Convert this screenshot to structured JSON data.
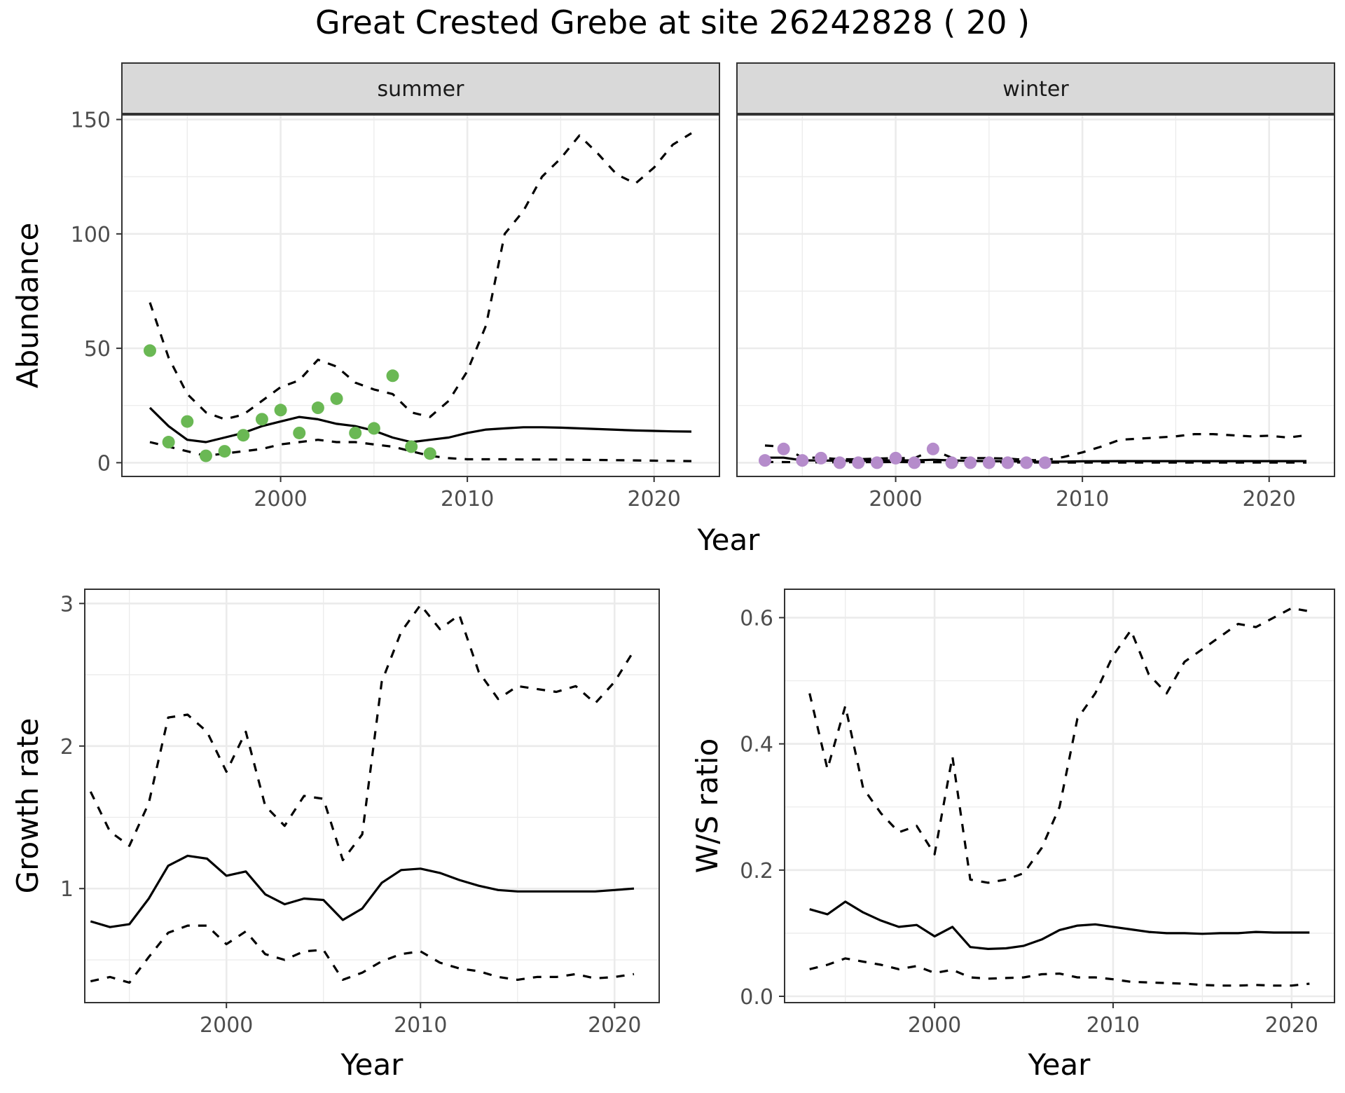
{
  "title": "Great Crested Grebe at site 26242828 ( 20 )",
  "colors": {
    "summer_points": "#6ab854",
    "winter_points": "#b58ccb",
    "line": "#000000",
    "grid": "#ebebeb",
    "strip_fill": "#d9d9d9",
    "panel_border": "#333333"
  },
  "chart_data": [
    {
      "type": "line",
      "panel": "summer",
      "strip": "summer",
      "xlabel": "Year",
      "ylabel": "Abundance",
      "xlim": [
        1991.5,
        2023.5
      ],
      "ylim": [
        -6,
        152
      ],
      "xticks": [
        2000,
        2010,
        2020
      ],
      "yticks": [
        0,
        50,
        100,
        150
      ],
      "grid": true,
      "points": {
        "x": [
          1993,
          1994,
          1995,
          1996,
          1997,
          1998,
          1999,
          2000,
          2001,
          2002,
          2003,
          2004,
          2005,
          2006,
          2007,
          2008
        ],
        "y": [
          49,
          9,
          18,
          3,
          5,
          12,
          19,
          23,
          13,
          24,
          28,
          13,
          15,
          38,
          7,
          4
        ]
      },
      "series": [
        {
          "style": "solid",
          "x": [
            1993,
            1994,
            1995,
            1996,
            1997,
            1998,
            1999,
            2000,
            2001,
            2002,
            2003,
            2004,
            2005,
            2006,
            2007,
            2008,
            2009,
            2010,
            2011,
            2012,
            2013,
            2014,
            2015,
            2016,
            2017,
            2018,
            2019,
            2020,
            2021,
            2022
          ],
          "y": [
            24,
            16,
            10,
            9,
            11,
            13,
            16,
            18,
            20,
            19,
            17,
            16,
            14,
            11,
            9,
            10,
            11,
            13,
            14.5,
            15,
            15.5,
            15.5,
            15.3,
            15,
            14.7,
            14.4,
            14.1,
            13.9,
            13.7,
            13.6
          ]
        },
        {
          "style": "dashed",
          "x": [
            1993,
            1994,
            1995,
            1996,
            1997,
            1998,
            1999,
            2000,
            2001,
            2002,
            2003,
            2004,
            2005,
            2006,
            2007,
            2008,
            2009,
            2010,
            2011,
            2012,
            2013,
            2014,
            2015,
            2016,
            2017,
            2018,
            2019,
            2020,
            2021,
            2022
          ],
          "y": [
            70,
            46,
            30,
            22,
            19,
            21,
            27,
            33,
            36,
            45,
            42,
            35,
            32,
            30,
            22,
            20,
            27,
            40,
            60,
            100,
            110,
            125,
            133,
            143,
            135,
            126,
            122,
            129,
            139,
            144
          ]
        },
        {
          "style": "dashed",
          "x": [
            1993,
            1994,
            1995,
            1996,
            1997,
            1998,
            1999,
            2000,
            2001,
            2002,
            2003,
            2004,
            2005,
            2006,
            2007,
            2008,
            2009,
            2010,
            2011,
            2012,
            2013,
            2014,
            2015,
            2016,
            2017,
            2018,
            2019,
            2020,
            2021,
            2022
          ],
          "y": [
            9,
            7,
            5,
            3,
            4,
            5,
            6,
            8,
            9,
            10,
            9,
            9,
            8,
            7,
            5,
            3,
            2,
            1.5,
            1.5,
            1.5,
            1.4,
            1.4,
            1.4,
            1.3,
            1.2,
            1.1,
            1,
            0.9,
            0.8,
            0.7
          ]
        }
      ]
    },
    {
      "type": "line",
      "panel": "winter",
      "strip": "winter",
      "xlabel": "",
      "ylabel": "",
      "xlim": [
        1991.5,
        2023.5
      ],
      "ylim": [
        -6,
        152
      ],
      "xticks": [
        2000,
        2010,
        2020
      ],
      "yticks": [],
      "grid": true,
      "points": {
        "x": [
          1993,
          1994,
          1995,
          1996,
          1997,
          1998,
          1999,
          2000,
          2001,
          2002,
          2003,
          2004,
          2005,
          2006,
          2007,
          2008
        ],
        "y": [
          1,
          6,
          1,
          2,
          0,
          0,
          0,
          2,
          0,
          6,
          0,
          0,
          0,
          0,
          0,
          0
        ]
      },
      "series": [
        {
          "style": "solid",
          "x": [
            1993,
            1994,
            1995,
            1996,
            1997,
            1998,
            1999,
            2000,
            2001,
            2002,
            2003,
            2004,
            2005,
            2006,
            2007,
            2008,
            2009,
            2010,
            2012,
            2014,
            2016,
            2018,
            2020,
            2022
          ],
          "y": [
            2.2,
            2.2,
            1,
            1,
            0.8,
            0.8,
            0.9,
            1,
            1,
            1.3,
            1,
            0.8,
            0.7,
            0.6,
            0.5,
            0.5,
            0.5,
            0.6,
            0.7,
            0.7,
            0.7,
            0.7,
            0.7,
            0.7
          ]
        },
        {
          "style": "dashed",
          "x": [
            1993,
            1994,
            1995,
            1996,
            1997,
            1998,
            1999,
            2000,
            2001,
            2002,
            2003,
            2004,
            2005,
            2006,
            2007,
            2008,
            2009,
            2010,
            2011,
            2012,
            2013,
            2014,
            2015,
            2016,
            2017,
            2018,
            2019,
            2020,
            2021,
            2022
          ],
          "y": [
            7.5,
            7,
            2.2,
            2.2,
            1.5,
            1.5,
            1.8,
            2,
            2,
            5.5,
            2.2,
            2,
            2,
            1.8,
            1.2,
            1,
            2.5,
            4.5,
            7,
            10,
            10.5,
            11,
            11.5,
            12.5,
            12.5,
            12,
            11.5,
            11.8,
            11,
            12
          ]
        },
        {
          "style": "dashed",
          "x": [
            1993,
            1996,
            2000,
            2004,
            2008,
            2012,
            2016,
            2020,
            2022
          ],
          "y": [
            0.3,
            0.2,
            0.3,
            0.2,
            0.1,
            0.1,
            0.1,
            0.1,
            0.1
          ]
        }
      ]
    },
    {
      "type": "line",
      "panel": "growth",
      "xlabel": "Year",
      "ylabel": "Growth rate",
      "xlim": [
        1992.7,
        2022.3
      ],
      "ylim": [
        0.2,
        3.1
      ],
      "xticks": [
        2000,
        2010,
        2020
      ],
      "yticks": [
        1,
        2,
        3
      ],
      "grid": true,
      "series": [
        {
          "style": "solid",
          "x": [
            1993,
            1994,
            1995,
            1996,
            1997,
            1998,
            1999,
            2000,
            2001,
            2002,
            2003,
            2004,
            2005,
            2006,
            2007,
            2008,
            2009,
            2010,
            2011,
            2012,
            2013,
            2014,
            2015,
            2016,
            2017,
            2018,
            2019,
            2020,
            2021
          ],
          "y": [
            0.77,
            0.73,
            0.75,
            0.93,
            1.16,
            1.23,
            1.21,
            1.09,
            1.12,
            0.96,
            0.89,
            0.93,
            0.92,
            0.78,
            0.86,
            1.04,
            1.13,
            1.14,
            1.11,
            1.06,
            1.02,
            0.99,
            0.98,
            0.98,
            0.98,
            0.98,
            0.98,
            0.99,
            1.0
          ]
        },
        {
          "style": "dashed",
          "x": [
            1993,
            1994,
            1995,
            1996,
            1997,
            1998,
            1999,
            2000,
            2001,
            2002,
            2003,
            2004,
            2005,
            2006,
            2007,
            2008,
            2009,
            2010,
            2011,
            2012,
            2013,
            2014,
            2015,
            2016,
            2017,
            2018,
            2019,
            2020,
            2021
          ],
          "y": [
            1.68,
            1.4,
            1.3,
            1.6,
            2.2,
            2.22,
            2.1,
            1.82,
            2.1,
            1.58,
            1.44,
            1.65,
            1.63,
            1.2,
            1.38,
            2.45,
            2.8,
            2.99,
            2.82,
            2.92,
            2.52,
            2.33,
            2.42,
            2.4,
            2.38,
            2.42,
            2.3,
            2.45,
            2.67
          ]
        },
        {
          "style": "dashed",
          "x": [
            1993,
            1994,
            1995,
            1996,
            1997,
            1998,
            1999,
            2000,
            2001,
            2002,
            2003,
            2004,
            2005,
            2006,
            2007,
            2008,
            2009,
            2010,
            2011,
            2012,
            2013,
            2014,
            2015,
            2016,
            2017,
            2018,
            2019,
            2020,
            2021
          ],
          "y": [
            0.35,
            0.38,
            0.34,
            0.52,
            0.69,
            0.74,
            0.74,
            0.61,
            0.7,
            0.54,
            0.5,
            0.56,
            0.57,
            0.36,
            0.41,
            0.49,
            0.54,
            0.56,
            0.48,
            0.44,
            0.42,
            0.38,
            0.36,
            0.38,
            0.38,
            0.4,
            0.37,
            0.38,
            0.4
          ]
        }
      ]
    },
    {
      "type": "line",
      "panel": "ratio",
      "xlabel": "Year",
      "ylabel": "W/S ratio",
      "xlim": [
        1991.6,
        2022.4
      ],
      "ylim": [
        -0.01,
        0.645
      ],
      "xticks": [
        2000,
        2010,
        2020
      ],
      "yticks": [
        0.0,
        0.2,
        0.4,
        0.6
      ],
      "ytick_labels": [
        "0.0",
        "0.2",
        "0.4",
        "0.6"
      ],
      "grid": true,
      "series": [
        {
          "style": "solid",
          "x": [
            1993,
            1994,
            1995,
            1996,
            1997,
            1998,
            1999,
            2000,
            2001,
            2002,
            2003,
            2004,
            2005,
            2006,
            2007,
            2008,
            2009,
            2010,
            2011,
            2012,
            2013,
            2014,
            2015,
            2016,
            2017,
            2018,
            2019,
            2020,
            2021
          ],
          "y": [
            0.138,
            0.13,
            0.15,
            0.133,
            0.12,
            0.11,
            0.113,
            0.095,
            0.11,
            0.078,
            0.075,
            0.076,
            0.08,
            0.09,
            0.105,
            0.112,
            0.114,
            0.11,
            0.106,
            0.102,
            0.1,
            0.1,
            0.099,
            0.1,
            0.1,
            0.102,
            0.101,
            0.101,
            0.101
          ]
        },
        {
          "style": "dashed",
          "x": [
            1993,
            1994,
            1995,
            1996,
            1997,
            1998,
            1999,
            2000,
            2001,
            2002,
            2003,
            2004,
            2005,
            2006,
            2007,
            2008,
            2009,
            2010,
            2011,
            2012,
            2013,
            2014,
            2015,
            2016,
            2017,
            2018,
            2019,
            2020,
            2021
          ],
          "y": [
            0.48,
            0.36,
            0.46,
            0.33,
            0.29,
            0.26,
            0.27,
            0.225,
            0.38,
            0.185,
            0.18,
            0.185,
            0.195,
            0.235,
            0.3,
            0.44,
            0.48,
            0.54,
            0.58,
            0.51,
            0.48,
            0.53,
            0.55,
            0.57,
            0.59,
            0.585,
            0.6,
            0.615,
            0.61
          ]
        },
        {
          "style": "dashed",
          "x": [
            1993,
            1994,
            1995,
            1996,
            1997,
            1998,
            1999,
            2000,
            2001,
            2002,
            2003,
            2004,
            2005,
            2006,
            2007,
            2008,
            2009,
            2010,
            2011,
            2012,
            2013,
            2014,
            2015,
            2016,
            2017,
            2018,
            2019,
            2020,
            2021
          ],
          "y": [
            0.043,
            0.05,
            0.06,
            0.055,
            0.05,
            0.043,
            0.048,
            0.037,
            0.042,
            0.03,
            0.028,
            0.029,
            0.03,
            0.035,
            0.036,
            0.03,
            0.03,
            0.027,
            0.023,
            0.022,
            0.021,
            0.02,
            0.018,
            0.017,
            0.017,
            0.018,
            0.017,
            0.017,
            0.02
          ]
        }
      ]
    }
  ]
}
